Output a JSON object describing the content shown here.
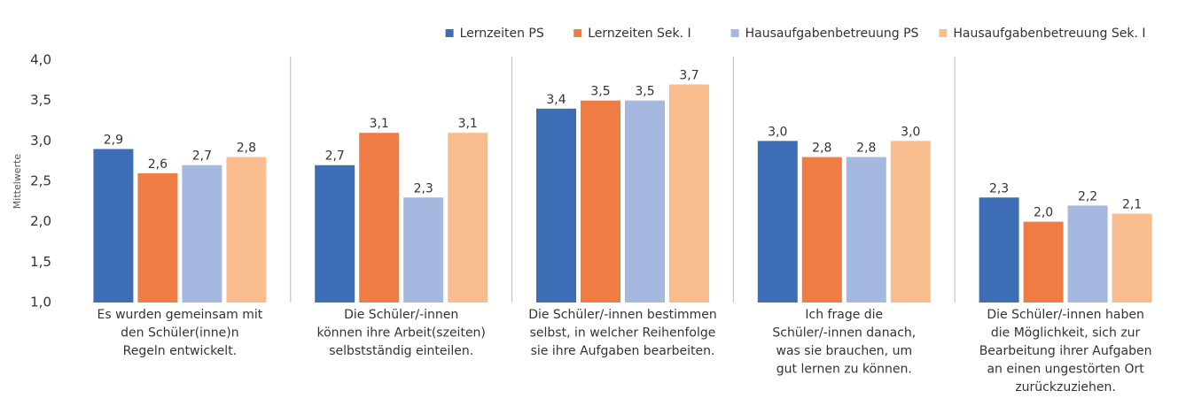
{
  "chart_data": {
    "type": "bar",
    "y_label": "Mittelwerte",
    "categories": [
      [
        "Es wurden gemeinsam mit",
        "den Schüler(inne)n",
        "Regeln entwickelt."
      ],
      [
        "Die Schüler/-innen",
        "können ihre Arbeit(szeiten)",
        "selbstständig einteilen."
      ],
      [
        "Die Schüler/-innen bestimmen",
        "selbst, in welcher Reihenfolge",
        "sie ihre Aufgaben bearbeiten."
      ],
      [
        "Ich frage die",
        "Schüler/-innen danach,",
        "was sie brauchen, um",
        "gut lernen zu können."
      ],
      [
        "Die Schüler/-innen haben",
        "die Möglichkeit, sich zur",
        "Bearbeitung ihrer Aufgaben",
        "an einen ungestörten Ort",
        "zurückzuziehen."
      ]
    ],
    "series": [
      {
        "name": "Lernzeiten PS",
        "color": "#3c6db5",
        "values": [
          2.9,
          2.7,
          3.4,
          3.0,
          2.3
        ],
        "value_labels": [
          "2,9",
          "2,7",
          "3,4",
          "3,0",
          "2,3"
        ]
      },
      {
        "name": "Lernzeiten Sek. I",
        "color": "#ef7b45",
        "values": [
          2.6,
          3.1,
          3.5,
          2.8,
          2.0
        ],
        "value_labels": [
          "2,6",
          "3,1",
          "3,5",
          "2,8",
          "2,0"
        ]
      },
      {
        "name": "Hausaufgabenbetreuung PS",
        "color": "#a5b8e0",
        "values": [
          2.7,
          2.3,
          3.5,
          2.8,
          2.2
        ],
        "value_labels": [
          "2,7",
          "2,3",
          "3,5",
          "2,8",
          "2,2"
        ]
      },
      {
        "name": "Hausaufgabenbetreuung Sek. I",
        "color": "#f8bc8f",
        "values": [
          2.8,
          3.1,
          3.7,
          3.0,
          2.1
        ],
        "value_labels": [
          "2,8",
          "3,1",
          "3,7",
          "3,0",
          "2,1"
        ]
      }
    ],
    "ylim": [
      1,
      4
    ],
    "yticks": [
      {
        "value": 1,
        "label": "1,0"
      },
      {
        "value": 1.5,
        "label": "1,5"
      },
      {
        "value": 2,
        "label": "2,0"
      },
      {
        "value": 2.5,
        "label": "2,5"
      },
      {
        "value": 3,
        "label": "3,0"
      },
      {
        "value": 3.5,
        "label": "3,5"
      },
      {
        "value": 4,
        "label": "4,0"
      }
    ],
    "grid": false,
    "legend": "top-right"
  }
}
